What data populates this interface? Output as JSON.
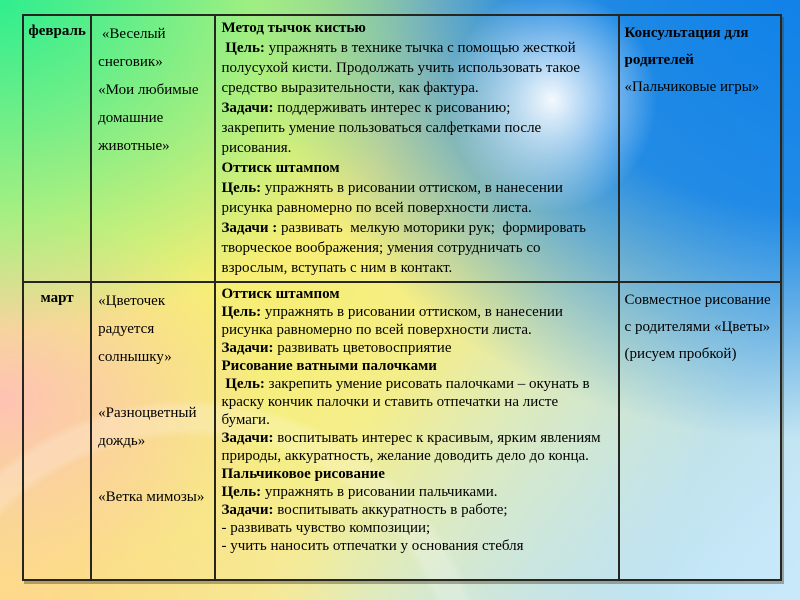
{
  "slide": {
    "type": "presentation-slide",
    "language": "ru"
  },
  "colors": {
    "corner_top_left_green": "#30ee8e",
    "corner_top_right_blue": "#0f81e8",
    "center_yellow": "#f7ee74",
    "left_pink": "#ffc2b4",
    "bottom_left_peach": "#ffd78d",
    "bottom_right_light_blue": "#c8e9f9",
    "table_border": "#26251f",
    "text": "#000000"
  },
  "table": {
    "columns": [
      "month",
      "themes",
      "methods",
      "consultation"
    ],
    "rows": [
      {
        "month": "февраль",
        "themes": [
          " «Веселый снеговик»",
          "«Мои любимые домашние животные»"
        ],
        "methods": [
          {
            "runs": [
              {
                "b": 1,
                "t": "Метод тычок кистью"
              }
            ]
          },
          {
            "runs": [
              {
                "b": 1,
                "t": " Цель:"
              },
              {
                "t": " упражнять в технике тычка с помощью жесткой полусухой кисти. Продолжать учить использовать такое средство выразительности, как фактура."
              }
            ]
          },
          {
            "runs": [
              {
                "b": 1,
                "t": "Задачи:"
              },
              {
                "t": " поддерживать интерес к рисованию;"
              }
            ]
          },
          {
            "runs": [
              {
                "t": "закрепить умение пользоваться салфетками после рисования."
              }
            ]
          },
          {
            "runs": [
              {
                "b": 1,
                "t": "Оттиск штампом"
              }
            ]
          },
          {
            "runs": [
              {
                "b": 1,
                "t": "Цель:"
              },
              {
                "t": " упражнять в рисовании оттиском, в нанесении рисунка равномерно по всей поверхности листа."
              }
            ]
          },
          {
            "runs": [
              {
                "b": 1,
                "t": "Задачи :"
              },
              {
                "t": " развивать  мелкую моторики рук;  формировать творческое воображения; умения сотрудничать со взрослым, вступать с ним в контакт."
              }
            ]
          }
        ],
        "consultation": [
          {
            "runs": [
              {
                "b": 1,
                "t": "Консультация для родителей"
              }
            ]
          },
          {
            "runs": [
              {
                "t": "«Пальчиковые игры»"
              }
            ]
          }
        ]
      },
      {
        "month": "март",
        "themes": [
          "«Цветочек радуется солнышку»",
          "«Разноцветный дождь»",
          "«Ветка мимозы»"
        ],
        "methods": [
          {
            "runs": [
              {
                "b": 1,
                "t": "Оттиск штампом"
              }
            ]
          },
          {
            "runs": [
              {
                "b": 1,
                "t": "Цель:"
              },
              {
                "t": " упражнять в рисовании оттиском, в нанесении рисунка равномерно по всей поверхности листа."
              }
            ]
          },
          {
            "runs": [
              {
                "b": 1,
                "t": "Задачи:"
              },
              {
                "t": " развивать цветовосприятие"
              }
            ]
          },
          {
            "runs": [
              {
                "b": 1,
                "t": "Рисование ватными палочками"
              }
            ]
          },
          {
            "runs": [
              {
                "b": 1,
                "t": " Цель:"
              },
              {
                "t": " закрепить умение рисовать палочками – окунать в краску кончик палочки и ставить отпечатки на листе бумаги."
              }
            ]
          },
          {
            "runs": [
              {
                "b": 1,
                "t": "Задачи:"
              },
              {
                "t": " воспитывать интерес к красивым, ярким явлениям природы, аккуратность, желание доводить дело до конца."
              }
            ]
          },
          {
            "runs": [
              {
                "b": 1,
                "t": "Пальчиковое рисование"
              }
            ]
          },
          {
            "runs": [
              {
                "b": 1,
                "t": "Цель:"
              },
              {
                "t": " упражнять в рисовании пальчиками."
              }
            ]
          },
          {
            "runs": [
              {
                "b": 1,
                "t": "Задачи:"
              },
              {
                "t": " воспитывать аккуратность в работе;"
              }
            ]
          },
          {
            "runs": [
              {
                "t": "- развивать чувство композиции;"
              }
            ]
          },
          {
            "runs": [
              {
                "t": "- учить наносить отпечатки у основания стебля"
              }
            ]
          }
        ],
        "consultation": [
          {
            "runs": [
              {
                "t": "Совместное рисование с родителями «Цветы» (рисуем пробкой)"
              }
            ]
          }
        ]
      }
    ]
  }
}
